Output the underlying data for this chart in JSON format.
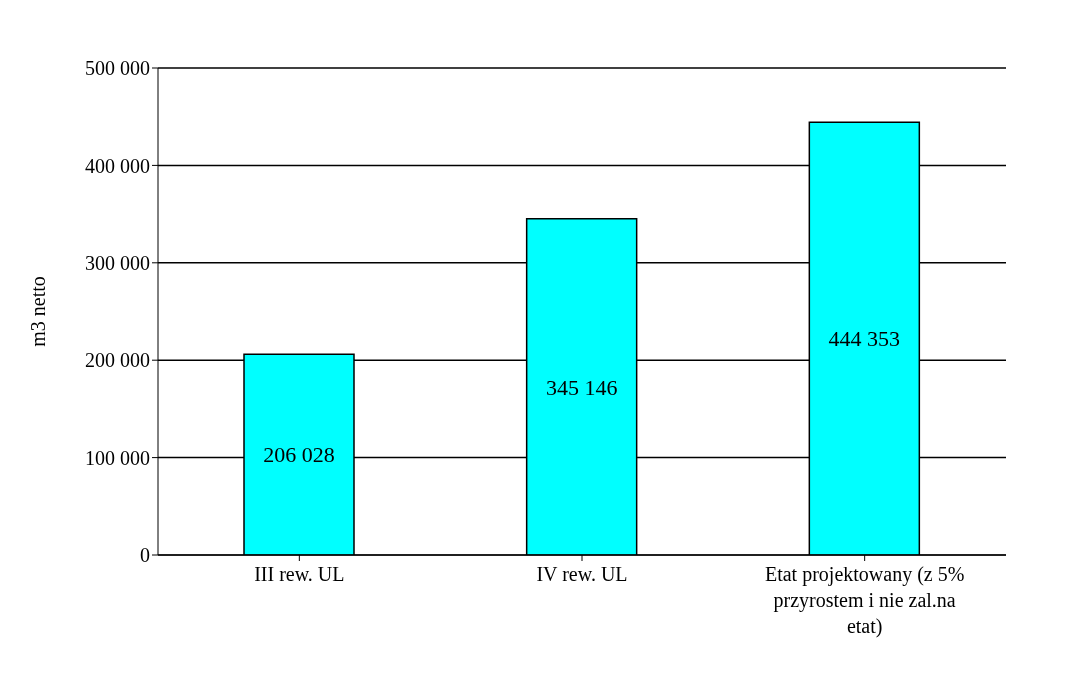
{
  "chart_data": {
    "type": "bar",
    "ylabel": "m3 netto",
    "categories": [
      "III rew. UL",
      "IV rew. UL",
      "Etat projektowany (z 5% przyrostem i nie zal.na etat)"
    ],
    "values": [
      206028,
      345146,
      444353
    ],
    "value_labels": [
      "206 028",
      "345 146",
      "444 353"
    ],
    "color": "#00ffff",
    "ylim": [
      0,
      500000
    ],
    "yticks": [
      {
        "value": 0,
        "label": "0"
      },
      {
        "value": 100000,
        "label": "100 000"
      },
      {
        "value": 200000,
        "label": "200 000"
      },
      {
        "value": 300000,
        "label": "300 000"
      },
      {
        "value": 400000,
        "label": "400 000"
      },
      {
        "value": 500000,
        "label": "500 000"
      }
    ],
    "grid": "y"
  }
}
